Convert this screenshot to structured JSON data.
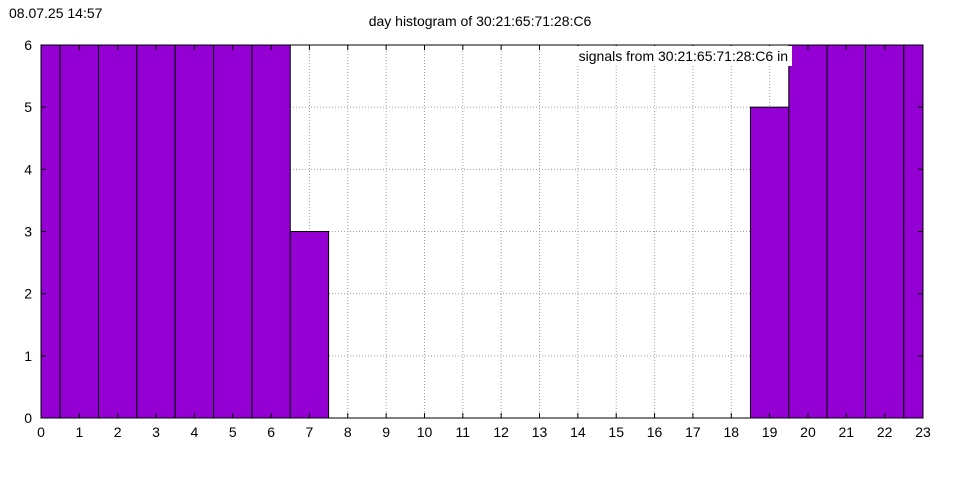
{
  "timestamp": "08.07.25 14:57",
  "chart_data": {
    "type": "bar",
    "title": "day histogram of 30:21:65:71:28:C6",
    "legend": "signals from 30:21:65:71:28:C6 in",
    "legend_position": "top-right",
    "xlabel": "",
    "ylabel": "",
    "categories": [
      "0",
      "1",
      "2",
      "3",
      "4",
      "5",
      "6",
      "7",
      "8",
      "9",
      "10",
      "11",
      "12",
      "13",
      "14",
      "15",
      "16",
      "17",
      "18",
      "19",
      "20",
      "21",
      "22",
      "23"
    ],
    "values": [
      6,
      6,
      6,
      6,
      6,
      6,
      6,
      3,
      0,
      0,
      0,
      0,
      0,
      0,
      0,
      0,
      0,
      0,
      0,
      5,
      6,
      6,
      6,
      6
    ],
    "ylim": [
      0,
      6
    ],
    "yticks": [
      "0",
      "1",
      "2",
      "3",
      "4",
      "5",
      "6"
    ],
    "grid": true,
    "bar_color": "#9400d3"
  }
}
